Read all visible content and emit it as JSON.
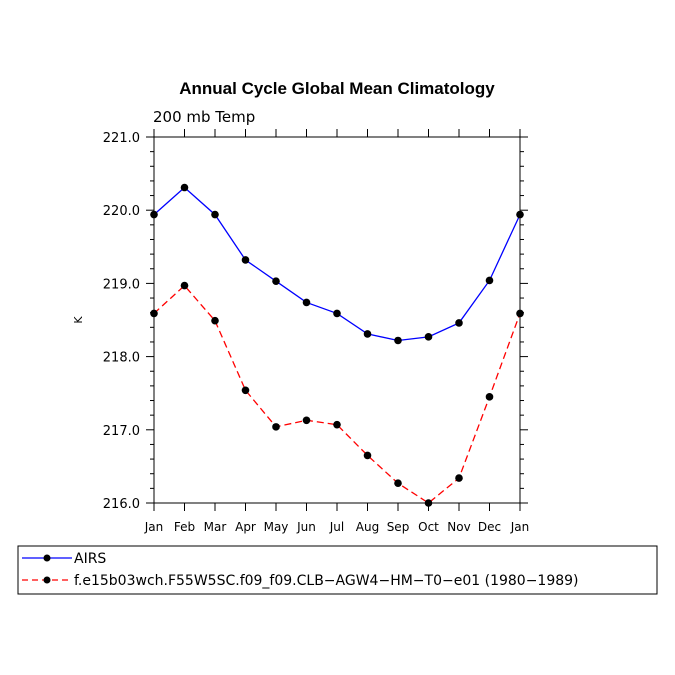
{
  "chart_data": {
    "type": "line",
    "title": "Annual Cycle Global Mean Climatology",
    "subtitle": "200 mb Temp",
    "xlabel": "",
    "ylabel": "K",
    "ylim": [
      216.0,
      221.0
    ],
    "yticks": [
      "216.0",
      "217.0",
      "218.0",
      "219.0",
      "220.0",
      "221.0"
    ],
    "categories": [
      "Jan",
      "Feb",
      "Mar",
      "Apr",
      "May",
      "Jun",
      "Jul",
      "Aug",
      "Sep",
      "Oct",
      "Nov",
      "Dec",
      "Jan"
    ],
    "grid": false,
    "legend_position": "bottom",
    "series": [
      {
        "name": "AIRS",
        "color": "#0000ff",
        "dash": "solid",
        "marker": "circle",
        "values": [
          219.94,
          220.31,
          219.94,
          219.32,
          219.03,
          218.74,
          218.59,
          218.31,
          218.22,
          218.27,
          218.46,
          219.04,
          219.94
        ]
      },
      {
        "name": "f.e15b03wch.F55W5SC.f09_f09.CLB−AGW4−HM−T0−e01 (1980−1989)",
        "color": "#ff0000",
        "dash": "dashed",
        "marker": "circle",
        "values": [
          218.59,
          218.97,
          218.49,
          217.54,
          217.04,
          217.13,
          217.07,
          216.65,
          216.27,
          216.0,
          216.34,
          217.45,
          218.59
        ]
      }
    ]
  }
}
